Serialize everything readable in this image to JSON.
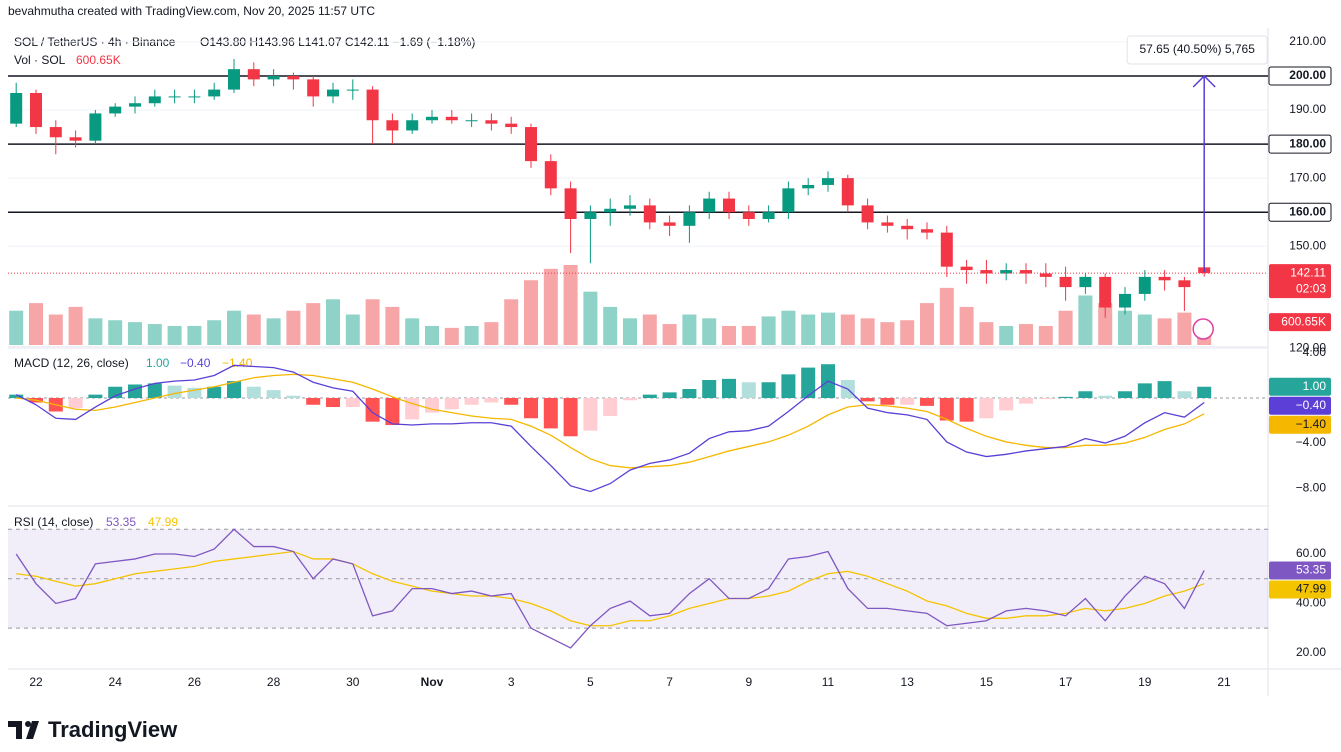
{
  "header": {
    "attribution": "bevahmutha created with TradingView.com, Nov 20, 2025 11:57 UTC",
    "brand": "TradingView"
  },
  "chart_data": [
    {
      "type": "candlestick",
      "symbol": "SOL / TetherUS · 4h · Binance",
      "legend_values": [
        "O143.80",
        "H143.96",
        "L141.07",
        "C142.11",
        "−1.69 (−1.18%)"
      ],
      "volume_title": "Vol · SOL",
      "categories": [
        null,
        "22",
        null,
        null,
        null,
        "24",
        null,
        null,
        null,
        "26",
        null,
        null,
        null,
        "28",
        null,
        null,
        null,
        "30",
        null,
        null,
        null,
        "Nov",
        null,
        null,
        null,
        "3",
        null,
        null,
        null,
        "5",
        null,
        null,
        null,
        "7",
        null,
        null,
        null,
        "9",
        null,
        null,
        null,
        "11",
        null,
        null,
        null,
        "13",
        null,
        null,
        null,
        "15",
        null,
        null,
        null,
        "17",
        null,
        null,
        null,
        "19",
        null,
        null,
        null,
        "21"
      ],
      "open": [
        186,
        195,
        185,
        182,
        181,
        189,
        191,
        192,
        194,
        194,
        194,
        196,
        202,
        199,
        200,
        199,
        194,
        196,
        196,
        187,
        184,
        187,
        188,
        187,
        187,
        186,
        185,
        175,
        167,
        158,
        160,
        161,
        162,
        157,
        156,
        160,
        164,
        160,
        158,
        160,
        167,
        168,
        170,
        162,
        157,
        156,
        155,
        154,
        144,
        143,
        142,
        143,
        142,
        141,
        138,
        141,
        132,
        136,
        141,
        140,
        143.8,
        null
      ],
      "high": [
        198,
        196,
        187,
        184,
        190,
        192,
        194,
        196,
        196,
        196,
        198,
        205,
        204,
        202,
        201,
        200,
        198,
        199,
        197,
        189,
        189,
        190,
        190,
        189,
        189,
        188,
        186,
        177,
        169,
        162,
        164,
        165,
        164,
        159,
        162,
        166,
        166,
        162,
        162,
        169,
        170,
        172,
        171,
        164,
        159,
        158,
        157,
        156,
        146,
        146,
        145,
        145,
        145,
        144,
        142,
        142,
        138,
        143,
        143,
        141,
        143.96,
        null
      ],
      "low": [
        185,
        183,
        177,
        179,
        180,
        188,
        189,
        191,
        192,
        192,
        193,
        195,
        197,
        197,
        196,
        191,
        192,
        193,
        180,
        180,
        183,
        186,
        186,
        185,
        184,
        183,
        173,
        165,
        148,
        145,
        156,
        159,
        155,
        153,
        151,
        158,
        158,
        156,
        157,
        158,
        165,
        166,
        160,
        155,
        154,
        152,
        152,
        141,
        139,
        139,
        140,
        139,
        138,
        134,
        136,
        129,
        130,
        134,
        137,
        131,
        141.07,
        null
      ],
      "close": [
        195,
        185,
        182,
        181,
        189,
        191,
        192,
        194,
        194,
        194,
        196,
        202,
        199,
        200,
        199,
        194,
        196,
        196,
        187,
        184,
        187,
        188,
        187,
        187,
        186,
        185,
        175,
        167,
        158,
        160,
        161,
        162,
        157,
        156,
        160,
        164,
        160,
        158,
        160,
        167,
        168,
        170,
        162,
        157,
        156,
        155,
        154,
        144,
        143,
        142,
        143,
        142,
        141,
        138,
        141,
        132,
        136,
        141,
        140,
        138,
        142.11,
        null
      ],
      "volume": [
        900,
        1100,
        800,
        1000,
        700,
        650,
        600,
        550,
        500,
        500,
        650,
        900,
        800,
        700,
        900,
        1100,
        1200,
        800,
        1200,
        1000,
        700,
        500,
        450,
        500,
        600,
        1200,
        1700,
        2000,
        2100,
        1400,
        1000,
        700,
        800,
        550,
        800,
        700,
        500,
        500,
        750,
        900,
        800,
        850,
        800,
        700,
        600,
        650,
        1100,
        1500,
        1000,
        600,
        500,
        550,
        500,
        900,
        1300,
        1100,
        900,
        800,
        700,
        850,
        600.65,
        null
      ],
      "volume_ylim": [
        0,
        2100
      ],
      "up_color": "#089981",
      "down_color": "#f23645",
      "volume_up_color": "#8fd3c8",
      "volume_down_color": "#f7a6a8",
      "ylim": [
        121,
        213.5
      ],
      "yticks": [
        {
          "value": 210,
          "label": "210.00"
        },
        {
          "value": 190,
          "label": "190.00"
        },
        {
          "value": 170,
          "label": "170.00"
        },
        {
          "value": 150,
          "label": "150.00"
        },
        {
          "value": 120,
          "label": "120.00"
        }
      ],
      "grid": true,
      "hlines": [
        {
          "value": 200,
          "label": "200.00"
        },
        {
          "value": 180,
          "label": "180.00"
        },
        {
          "value": 160,
          "label": "160.00"
        }
      ],
      "last_price": {
        "value": 142.11,
        "label": "142.11",
        "countdown": "02:03"
      },
      "last_volume": {
        "value": 600.65,
        "label": "600.65K"
      },
      "measure": {
        "index": 60,
        "from": 142.35,
        "to": 200,
        "label": "57.65 (40.50%) 5,765",
        "color": "#5b3fd6"
      }
    },
    {
      "type": "macd",
      "title": "MACD (12, 26, close)",
      "legend_values": [
        "1.00",
        "−0.40",
        "−1.40"
      ],
      "ylim": [
        -9.5,
        4.44
      ],
      "yticks": [
        {
          "value": 4,
          "label": "4.00"
        },
        {
          "value": -4,
          "label": "−4.00"
        },
        {
          "value": -8,
          "label": "−8.00"
        }
      ],
      "zero": 0,
      "histogram": {
        "colors": [
          "#26a69a",
          "#b2dfdb",
          "#ff5252",
          "#ffcdd2"
        ],
        "values": [
          0.3,
          -0.4,
          -1.2,
          -0.9,
          0.3,
          1.0,
          1.2,
          1.3,
          1.1,
          0.9,
          1.0,
          1.5,
          1.0,
          0.7,
          0.2,
          -0.6,
          -0.8,
          -0.8,
          -2.1,
          -2.4,
          -1.9,
          -1.3,
          -1.0,
          -0.6,
          -0.4,
          -0.6,
          -1.8,
          -2.7,
          -3.4,
          -2.9,
          -1.6,
          -0.2,
          0.3,
          0.5,
          0.8,
          1.6,
          1.7,
          1.4,
          1.4,
          2.1,
          2.7,
          3.0,
          1.6,
          -0.3,
          -0.6,
          -0.6,
          -0.7,
          -2.0,
          -2.1,
          -1.8,
          -1.1,
          -0.5,
          -0.1,
          0.1,
          0.6,
          0.2,
          0.6,
          1.3,
          1.5,
          0.6,
          1.0,
          null
        ]
      },
      "macd": {
        "color": "#5b3fd6",
        "values": [
          0.3,
          -0.6,
          -1.8,
          -1.9,
          -0.8,
          0.2,
          0.8,
          1.3,
          1.5,
          1.6,
          2.0,
          2.9,
          2.8,
          2.7,
          2.3,
          1.4,
          0.9,
          0.6,
          -1.3,
          -2.3,
          -2.4,
          -2.3,
          -2.3,
          -2.2,
          -2.2,
          -2.5,
          -4.3,
          -6.0,
          -7.8,
          -8.3,
          -7.6,
          -6.4,
          -5.8,
          -5.5,
          -4.9,
          -3.6,
          -3.0,
          -2.9,
          -2.5,
          -1.2,
          0.2,
          1.5,
          0.8,
          -0.9,
          -1.3,
          -1.5,
          -1.9,
          -3.9,
          -4.8,
          -5.2,
          -5.0,
          -4.7,
          -4.5,
          -4.3,
          -3.6,
          -4.0,
          -3.4,
          -2.2,
          -1.3,
          -1.7,
          -0.4,
          null
        ]
      },
      "signal": {
        "color": "#f5b700",
        "values": [
          0.0,
          -0.2,
          -0.6,
          -1.0,
          -1.1,
          -0.8,
          -0.4,
          0.0,
          0.4,
          0.7,
          1.0,
          1.4,
          1.8,
          2.0,
          2.1,
          2.0,
          1.7,
          1.4,
          0.8,
          0.1,
          -0.5,
          -1.0,
          -1.3,
          -1.6,
          -1.8,
          -1.9,
          -2.5,
          -3.3,
          -4.4,
          -5.4,
          -6.0,
          -6.2,
          -6.1,
          -6.0,
          -5.7,
          -5.2,
          -4.7,
          -4.3,
          -3.9,
          -3.3,
          -2.5,
          -1.5,
          -0.8,
          -0.6,
          -0.7,
          -0.9,
          -1.2,
          -1.9,
          -2.7,
          -3.4,
          -3.9,
          -4.2,
          -4.4,
          -4.4,
          -4.2,
          -4.2,
          -4.0,
          -3.5,
          -2.8,
          -2.3,
          -1.4,
          null
        ]
      }
    },
    {
      "type": "rsi",
      "title": "RSI (14, close)",
      "legend_values": [
        "53.35",
        "47.99"
      ],
      "ylim": [
        13.9,
        78.6
      ],
      "yticks": [
        {
          "value": 60,
          "label": "60.00"
        },
        {
          "value": 40,
          "label": "40.00"
        },
        {
          "value": 20,
          "label": "20.00"
        }
      ],
      "band": [
        30,
        70
      ],
      "midline": 50,
      "band_color": "#7e57c2",
      "rsi": {
        "color": "#7e57c2",
        "values": [
          60,
          48,
          40,
          42,
          56,
          57,
          58,
          60,
          60,
          59,
          62,
          70,
          63,
          63,
          61,
          50,
          58,
          56,
          35,
          37,
          46,
          46,
          44,
          45,
          43,
          44,
          30,
          26,
          22,
          31,
          38,
          41,
          35,
          36,
          44,
          50,
          42,
          42,
          46,
          58,
          59,
          61,
          46,
          38,
          38,
          37,
          36,
          31,
          32,
          33,
          37,
          38,
          37,
          35,
          42,
          33,
          43,
          51,
          48,
          38,
          53.35,
          null
        ]
      },
      "ma": {
        "color": "#f5c400",
        "values": [
          52,
          51,
          49,
          47,
          48,
          50,
          52,
          53,
          54,
          55,
          57,
          58,
          59,
          60,
          61,
          58,
          58,
          56,
          52,
          49,
          47,
          45,
          44,
          43,
          43,
          42,
          40,
          37,
          33,
          31,
          31,
          33,
          33,
          35,
          38,
          40,
          42,
          42,
          43,
          45,
          49,
          52,
          53,
          51,
          48,
          45,
          41,
          39,
          36,
          34,
          34,
          35,
          35,
          36,
          38,
          37,
          38,
          40,
          43,
          45,
          47.99,
          null
        ]
      }
    }
  ]
}
